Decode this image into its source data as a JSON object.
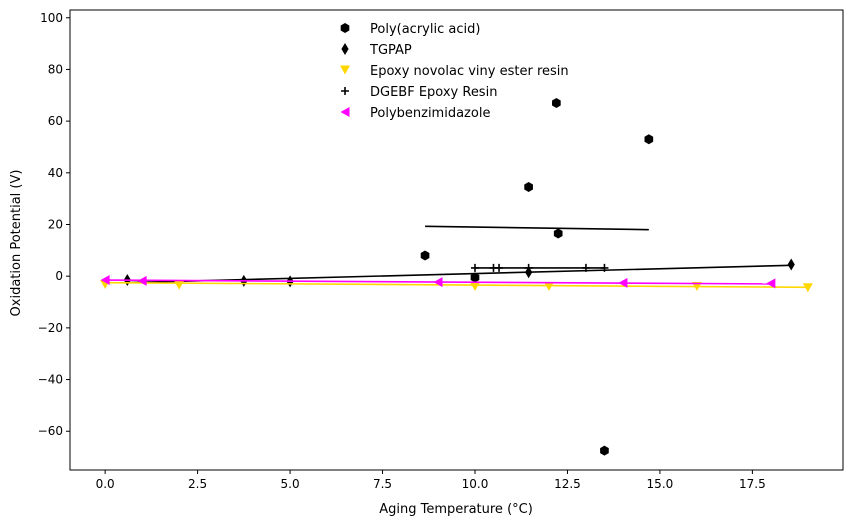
{
  "chart_data": {
    "type": "scatter",
    "title": "",
    "xlabel": "Aging Temperature (°C)",
    "ylabel": "Oxidation Potential (V)",
    "xlim": [
      -0.95,
      19.95
    ],
    "ylim": [
      -75,
      103
    ],
    "x_ticks": [
      0.0,
      2.5,
      5.0,
      7.5,
      10.0,
      12.5,
      15.0,
      17.5
    ],
    "x_tick_labels": [
      "0.0",
      "2.5",
      "5.0",
      "7.5",
      "10.0",
      "12.5",
      "15.0",
      "17.5"
    ],
    "y_ticks": [
      -60,
      -40,
      -20,
      0,
      20,
      40,
      60,
      80,
      100
    ],
    "y_tick_labels": [
      "−60",
      "−40",
      "−20",
      "0",
      "20",
      "40",
      "60",
      "80",
      "100"
    ],
    "grid": false,
    "legend_position": "top-center",
    "series": [
      {
        "name": "Poly(acrylic acid)",
        "marker": "hexagon",
        "color": "#000000",
        "points": [
          [
            8.65,
            8
          ],
          [
            10.0,
            -0.5
          ],
          [
            11.45,
            34.5
          ],
          [
            12.2,
            67
          ],
          [
            12.25,
            16.5
          ],
          [
            13.5,
            -67.5
          ],
          [
            14.7,
            53
          ]
        ],
        "trend": [
          [
            8.65,
            19.3
          ],
          [
            14.7,
            18.0
          ]
        ]
      },
      {
        "name": "TGPAP",
        "marker": "thin_diamond",
        "color": "#000000",
        "points": [
          [
            0.6,
            -1.5
          ],
          [
            3.75,
            -1.8
          ],
          [
            5.0,
            -2.0
          ],
          [
            11.45,
            1.5
          ],
          [
            18.55,
            4.5
          ]
        ],
        "trend": [
          [
            0.6,
            -2.5
          ],
          [
            18.55,
            4.2
          ]
        ]
      },
      {
        "name": "Epoxy novolac viny ester resin",
        "marker": "triangle_down",
        "color": "#FFD700",
        "points": [
          [
            0.0,
            -3.2
          ],
          [
            2.0,
            -3.5
          ],
          [
            10.0,
            -4.0
          ],
          [
            12.0,
            -4.0
          ],
          [
            16.0,
            -4.0
          ],
          [
            19.0,
            -4.5
          ]
        ],
        "trend": [
          [
            0.0,
            -2.5
          ],
          [
            19.0,
            -4.3
          ]
        ]
      },
      {
        "name": "DGEBF Epoxy Resin",
        "marker": "plus",
        "color": "#000000",
        "points": [
          [
            10.0,
            3.2
          ],
          [
            10.5,
            3.2
          ],
          [
            10.65,
            3.2
          ],
          [
            11.45,
            3.2
          ],
          [
            13.0,
            3.2
          ],
          [
            13.5,
            3.2
          ]
        ],
        "trend": [
          [
            10.0,
            3.2
          ],
          [
            13.5,
            3.2
          ]
        ]
      },
      {
        "name": "Polybenzimidazole",
        "marker": "triangle_left",
        "color": "#FF00FF",
        "points": [
          [
            0.0,
            -1.5
          ],
          [
            1.0,
            -1.8
          ],
          [
            9.0,
            -2.3
          ],
          [
            14.0,
            -2.6
          ],
          [
            18.0,
            -2.8
          ]
        ],
        "trend": [
          [
            0.0,
            -1.5
          ],
          [
            18.0,
            -3.0
          ]
        ]
      }
    ]
  }
}
